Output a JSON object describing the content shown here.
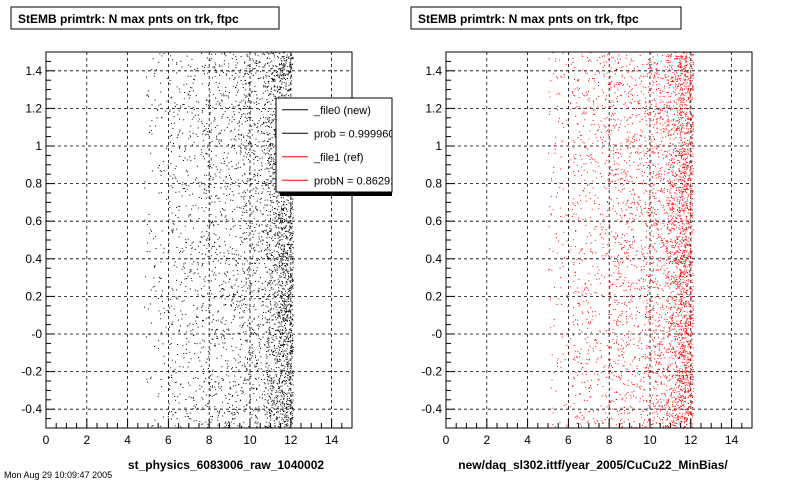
{
  "chart_data": [
    {
      "type": "scatter",
      "title": "StEMB primtrk: N max pnts on trk, ftpc",
      "xlabel": "st_physics_6083006_raw_1040002",
      "ylabel": "",
      "xlim": [
        0,
        15
      ],
      "ylim": [
        -0.5,
        1.5
      ],
      "xticks": [
        0,
        2,
        4,
        6,
        8,
        10,
        12,
        14
      ],
      "xtick_labels": [
        "0",
        "2",
        "4",
        "6",
        "8",
        "10",
        "12",
        "14"
      ],
      "yticks": [
        -0.4,
        -0.2,
        0,
        0.2,
        0.4,
        0.6,
        0.8,
        1,
        1.2,
        1.4
      ],
      "ytick_labels": [
        "-0.4",
        "-0.2",
        "-0",
        "0.2",
        "0.4",
        "0.6",
        "0.8",
        "1",
        "1.2",
        "1.4"
      ],
      "grid": true,
      "point_color": "#000000",
      "series": [
        {
          "name": "_file0 (new)",
          "color": "#000000",
          "bands": [
            {
              "x": [
                4.8,
                6.0
              ],
              "n": 120
            },
            {
              "x": [
                6.0,
                7.8
              ],
              "n": 450
            },
            {
              "x": [
                7.8,
                9.6
              ],
              "n": 700
            },
            {
              "x": [
                9.6,
                10.8
              ],
              "n": 650
            },
            {
              "x": [
                10.8,
                11.4
              ],
              "n": 700
            },
            {
              "x": [
                11.4,
                12.1
              ],
              "n": 1300
            }
          ]
        }
      ],
      "legend": {
        "placement": "top-right",
        "entries": [
          {
            "label": "_file0 (new)",
            "color": "#000000"
          },
          {
            "label": "prob = 0.999960",
            "color": "#000000"
          },
          {
            "label": "_file1 (ref)",
            "color": "#ff0000"
          },
          {
            "label": "probN = 0.862916",
            "color": "#ff0000"
          }
        ]
      }
    },
    {
      "type": "scatter",
      "title": "StEMB primtrk: N max pnts on trk, ftpc",
      "xlabel": "new/daq_sl302.ittf/year_2005/CuCu22_MinBias/",
      "ylabel": "",
      "xlim": [
        0,
        15
      ],
      "ylim": [
        -0.5,
        1.5
      ],
      "xticks": [
        0,
        2,
        4,
        6,
        8,
        10,
        12,
        14
      ],
      "xtick_labels": [
        "0",
        "2",
        "4",
        "6",
        "8",
        "10",
        "12",
        "14"
      ],
      "yticks": [
        -0.4,
        -0.2,
        0,
        0.2,
        0.4,
        0.6,
        0.8,
        1,
        1.2,
        1.4
      ],
      "ytick_labels": [
        "-0.4",
        "-0.2",
        "-0",
        "0.2",
        "0.4",
        "0.6",
        "0.8",
        "1",
        "1.2",
        "1.4"
      ],
      "grid": true,
      "point_color": "#ff0000",
      "series": [
        {
          "name": "_file1 (ref)",
          "color": "#ff0000",
          "bands": [
            {
              "x": [
                5.0,
                6.2
              ],
              "n": 140
            },
            {
              "x": [
                6.2,
                8.0
              ],
              "n": 500
            },
            {
              "x": [
                8.0,
                9.8
              ],
              "n": 750
            },
            {
              "x": [
                9.8,
                10.8
              ],
              "n": 650
            },
            {
              "x": [
                10.8,
                11.4
              ],
              "n": 750
            },
            {
              "x": [
                11.4,
                12.1
              ],
              "n": 1400
            }
          ]
        }
      ]
    }
  ],
  "footer": {
    "timestamp": "Mon Aug 29 10:09:47 2005"
  }
}
